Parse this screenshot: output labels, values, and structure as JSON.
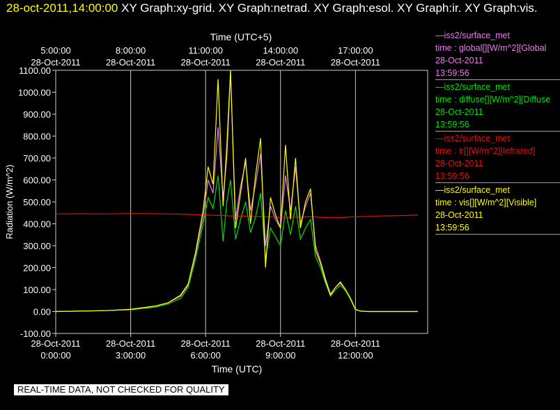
{
  "title": {
    "stamp": "28-oct-2011,14:00:00",
    "rest": "XY Graph:xy-grid.  XY Graph:netrad.  XY Graph:esol.  XY Graph:ir.  XY Graph:vis."
  },
  "legend": [
    {
      "source": "—iss2/surface_met",
      "var": "time : global[][W/m^2][Global",
      "date": "28-Oct-2011",
      "time": "13:59:56",
      "color": "#e87ee8"
    },
    {
      "source": "—iss2/surface_met",
      "var": "time : diffuse[][W/m^2][Diffuse",
      "date": "28-Oct-2011",
      "time": "13:59:56",
      "color": "#00e000"
    },
    {
      "source": "—iss2/surface_met",
      "var": "time : ir[][W/m^2][Infrared]",
      "date": "28-Oct-2011",
      "time": "13:59:56",
      "color": "#e01010"
    },
    {
      "source": "—iss2/surface_met",
      "var": "time : vis[][W/m^2][Visible]",
      "date": "28-Oct-2011",
      "time": "13:59:56",
      "color": "#ffff00"
    }
  ],
  "disclaimer": "REAL-TIME DATA, NOT CHECKED FOR QUALITY",
  "chart_data": {
    "type": "line",
    "ylabel": "Radiation (W/m^2)",
    "xlabel": "Time (UTC)",
    "top_axis_label": "Time (UTC+5)",
    "ylim": [
      -100,
      1100
    ],
    "xlim_hours": [
      0,
      14.5
    ],
    "grid": "vertical lines at 3-hour ticks",
    "y_ticks": [
      "-100.00",
      "0.00",
      "100.00",
      "200.00",
      "300.00",
      "400.00",
      "500.00",
      "600.00",
      "700.00",
      "800.00",
      "900.00",
      "1000.00",
      "1100.00"
    ],
    "x_ticks_bottom": [
      {
        "date": "28-Oct-2011",
        "time": "0:00:00"
      },
      {
        "date": "28-Oct-2011",
        "time": "3:00:00"
      },
      {
        "date": "28-Oct-2011",
        "time": "6:00:00"
      },
      {
        "date": "28-Oct-2011",
        "time": "9:00:00"
      },
      {
        "date": "28-Oct-2011",
        "time": "12:00:00"
      }
    ],
    "x_ticks_top": [
      {
        "time": "5:00:00",
        "date": "28-Oct-2011"
      },
      {
        "time": "8:00:00",
        "date": "28-Oct-2011"
      },
      {
        "time": "11:00:00",
        "date": "28-Oct-2011"
      },
      {
        "time": "14:00:00",
        "date": "28-Oct-2011"
      },
      {
        "time": "17:00:00",
        "date": "28-Oct-2011"
      }
    ],
    "x_hours": [
      0,
      1,
      2,
      3,
      4,
      4.5,
      5,
      5.3,
      5.6,
      5.9,
      6.1,
      6.3,
      6.5,
      6.7,
      6.85,
      7.0,
      7.2,
      7.4,
      7.6,
      7.8,
      8.0,
      8.2,
      8.4,
      8.6,
      8.8,
      9.0,
      9.2,
      9.4,
      9.6,
      9.8,
      10.0,
      10.2,
      10.4,
      10.6,
      10.8,
      11.0,
      11.2,
      11.4,
      11.6,
      11.8,
      12.0,
      12.2,
      12.5,
      13.0,
      14.0,
      14.5
    ],
    "series": [
      {
        "name": "global",
        "color": "#e87ee8",
        "values": [
          0,
          2,
          4,
          10,
          25,
          40,
          70,
          120,
          260,
          430,
          600,
          540,
          840,
          520,
          700,
          1090,
          420,
          570,
          680,
          460,
          580,
          720,
          300,
          480,
          420,
          380,
          620,
          460,
          660,
          400,
          480,
          540,
          300,
          230,
          150,
          80,
          110,
          130,
          100,
          60,
          10,
          2,
          0,
          0,
          0,
          0
        ]
      },
      {
        "name": "diffuse",
        "color": "#00e000",
        "values": [
          0,
          2,
          4,
          8,
          20,
          35,
          60,
          110,
          240,
          400,
          520,
          470,
          620,
          320,
          500,
          600,
          330,
          420,
          500,
          360,
          430,
          540,
          240,
          380,
          340,
          300,
          460,
          350,
          480,
          330,
          380,
          420,
          250,
          200,
          130,
          70,
          100,
          120,
          95,
          55,
          8,
          2,
          0,
          0,
          0,
          0
        ]
      },
      {
        "name": "ir",
        "color": "#e01010",
        "values": [
          445,
          446,
          445,
          447,
          446,
          445,
          444,
          443,
          442,
          441,
          440,
          439,
          438,
          438,
          437,
          436,
          435,
          436,
          435,
          434,
          433,
          432,
          432,
          431,
          430,
          430,
          429,
          430,
          431,
          430,
          431,
          432,
          431,
          430,
          429,
          428,
          428,
          429,
          430,
          431,
          432,
          433,
          434,
          436,
          438,
          440
        ]
      },
      {
        "name": "vis",
        "color": "#ffff00",
        "values": [
          0,
          2,
          4,
          10,
          25,
          40,
          75,
          125,
          270,
          460,
          660,
          580,
          1060,
          480,
          760,
          1100,
          380,
          540,
          700,
          400,
          620,
          790,
          200,
          520,
          440,
          380,
          760,
          420,
          700,
          380,
          500,
          560,
          280,
          220,
          140,
          75,
          110,
          135,
          100,
          60,
          10,
          2,
          0,
          0,
          0,
          0
        ]
      }
    ]
  }
}
